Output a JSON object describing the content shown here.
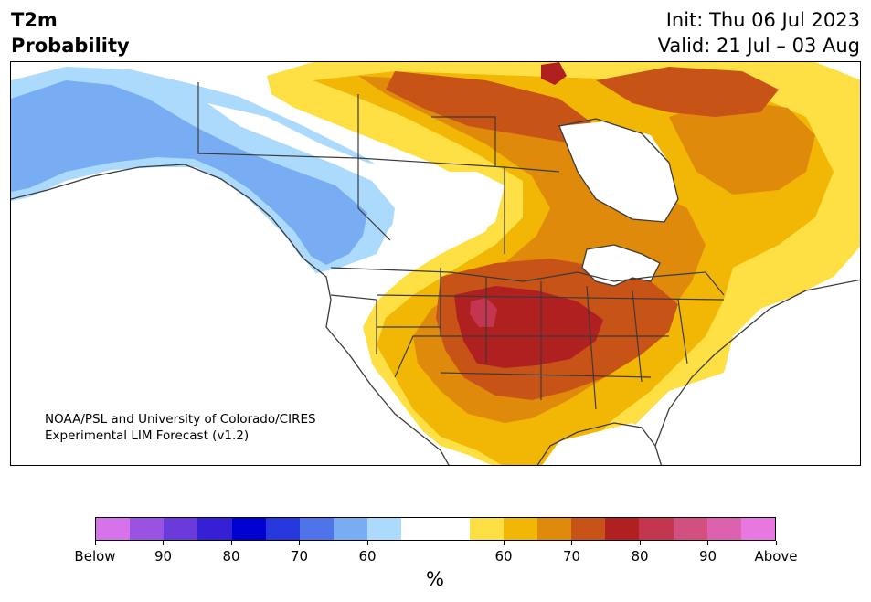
{
  "header": {
    "variable": "T2m",
    "product": "Probability",
    "init": "Init: Thu 06 Jul 2023",
    "valid": "Valid: 21 Jul – 03 Aug"
  },
  "credit": {
    "line1": "NOAA/PSL and University of Colorado/CIRES",
    "line2": "Experimental LIM Forecast (v1.2)"
  },
  "legend": {
    "unit": "%",
    "tick_labels": [
      "Below",
      "90",
      "80",
      "70",
      "60",
      "60",
      "70",
      "80",
      "90",
      "Above"
    ],
    "colors": {
      "below": [
        "#d673eb",
        "#9a52e0",
        "#6b3adb",
        "#3520d6",
        "#0000d0",
        "#2638dc",
        "#4f73e8",
        "#78adf4",
        "#acdafc"
      ],
      "neutral": "#ffffff",
      "above": [
        "#fee044",
        "#f2b705",
        "#e08a0c",
        "#c75316",
        "#b02020",
        "#c43550",
        "#d25080",
        "#dc62b0",
        "#e878e0"
      ]
    }
  }
}
